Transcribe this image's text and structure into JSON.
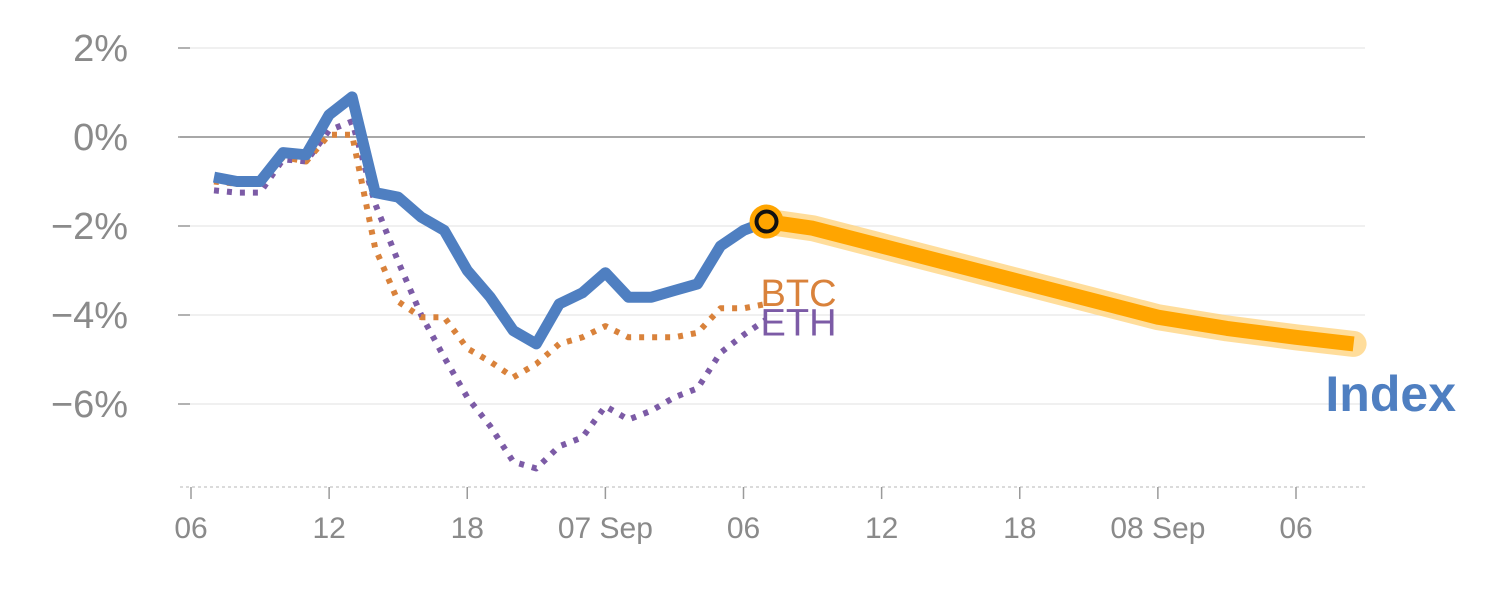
{
  "chart_data": {
    "type": "line",
    "title": "",
    "xlabel": "",
    "ylabel": "",
    "y_ticks": [
      "2%",
      "0%",
      "−2%",
      "−4%",
      "−6%"
    ],
    "y_tick_values": [
      2,
      0,
      -2,
      -4,
      -6
    ],
    "ylim": [
      -7.8,
      2.4
    ],
    "x_ticks": [
      "06",
      "12",
      "18",
      "07 Sep",
      "06",
      "12",
      "18",
      "08 Sep",
      "06"
    ],
    "x_tick_hours": [
      0,
      6,
      12,
      18,
      24,
      30,
      36,
      42,
      48
    ],
    "xlim_hours": [
      0,
      51
    ],
    "x_unit": "hours",
    "zero_line": true,
    "grid": "horizontal",
    "colors": {
      "index": "#4f7fc1",
      "btc": "#d9823b",
      "eth": "#7c5ba6",
      "forecast": "#ffa500",
      "forecast_glow": "#ffd27a",
      "marker_fill": "#ffa500",
      "marker_ring": "#111111",
      "grid": "#e6e6e6",
      "zero": "#8c8c8c"
    },
    "series": [
      {
        "name": "Index",
        "style": "solid",
        "x": [
          1,
          2,
          3,
          4,
          5,
          6,
          7,
          8,
          9,
          10,
          11,
          12,
          13,
          14,
          15,
          16,
          17,
          18,
          19,
          20,
          21,
          22,
          23,
          24,
          25
        ],
        "values": [
          -0.9,
          -1.0,
          -1.0,
          -0.35,
          -0.4,
          0.5,
          0.9,
          -1.25,
          -1.35,
          -1.8,
          -2.1,
          -3.0,
          -3.6,
          -4.35,
          -4.65,
          -3.75,
          -3.5,
          -3.05,
          -3.6,
          -3.6,
          -3.45,
          -3.3,
          -2.45,
          -2.1,
          -1.9
        ]
      },
      {
        "name": "BTC",
        "style": "dotted",
        "x": [
          1,
          2,
          3,
          4,
          5,
          6,
          7,
          8,
          9,
          10,
          11,
          12,
          13,
          14,
          15,
          16,
          17,
          18,
          19,
          20,
          21,
          22,
          23,
          24,
          25
        ],
        "values": [
          -1.0,
          -1.05,
          -1.05,
          -0.45,
          -0.55,
          0.05,
          0.05,
          -2.5,
          -3.7,
          -4.05,
          -4.05,
          -4.75,
          -5.05,
          -5.4,
          -5.1,
          -4.65,
          -4.5,
          -4.25,
          -4.5,
          -4.5,
          -4.5,
          -4.4,
          -3.85,
          -3.85,
          -3.75
        ]
      },
      {
        "name": "ETH",
        "style": "dotted",
        "x": [
          1,
          2,
          3,
          4,
          5,
          6,
          7,
          8,
          9,
          10,
          11,
          12,
          13,
          14,
          15,
          16,
          17,
          18,
          19,
          20,
          21,
          22,
          23,
          24,
          25
        ],
        "values": [
          -1.2,
          -1.25,
          -1.25,
          -0.5,
          -0.55,
          0.15,
          0.35,
          -1.5,
          -2.8,
          -4.0,
          -4.95,
          -5.85,
          -6.5,
          -7.3,
          -7.45,
          -6.95,
          -6.75,
          -6.05,
          -6.35,
          -6.15,
          -5.85,
          -5.65,
          -4.85,
          -4.45,
          -4.1
        ]
      },
      {
        "name": "forecast",
        "style": "thick",
        "x": [
          25,
          27,
          30,
          33,
          36,
          39,
          42,
          45,
          48,
          50.5
        ],
        "values": [
          -1.9,
          -2.05,
          -2.45,
          -2.85,
          -3.25,
          -3.65,
          -4.05,
          -4.3,
          -4.5,
          -4.65
        ]
      }
    ],
    "series_labels": {
      "btc": "BTC",
      "eth": "ETH",
      "index": "Index"
    },
    "current_point": {
      "x": 25,
      "value": -1.9
    }
  }
}
